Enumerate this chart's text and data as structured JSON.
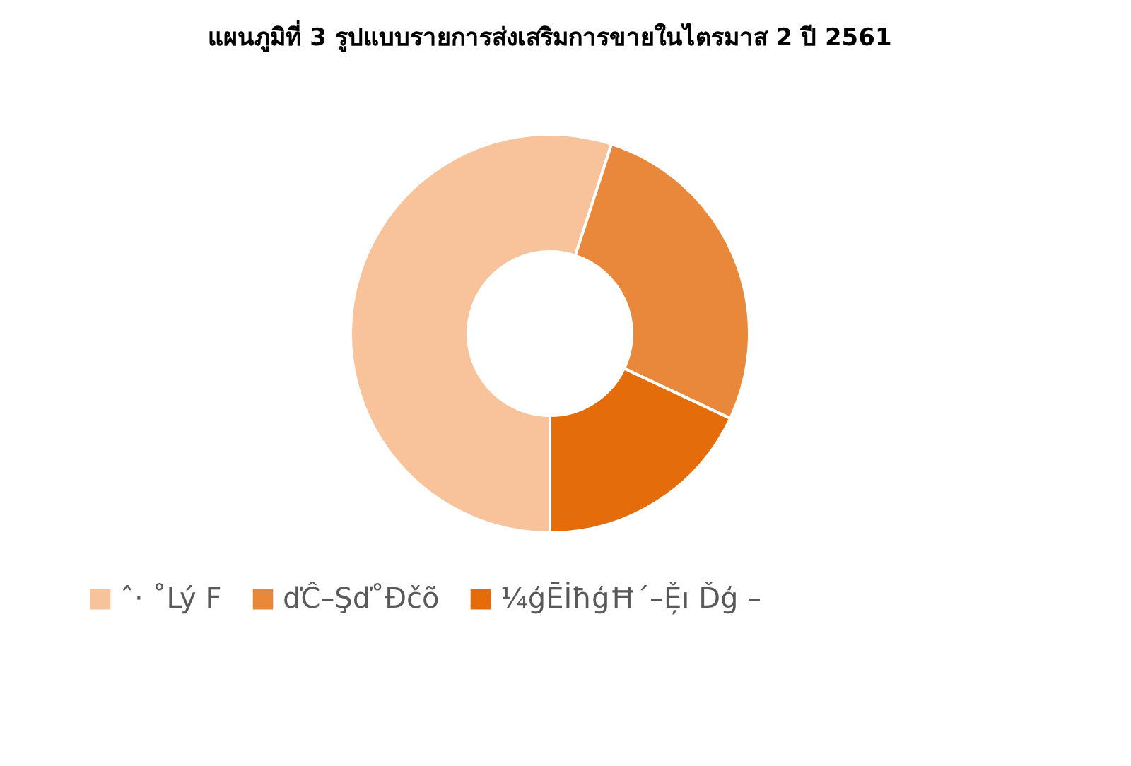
{
  "chart_data": {
    "type": "donut",
    "title": "แผนภูมิที่ 3 รูปแบบรายการส่งเสริมการขายในไตรมาส 2 ปี 2561",
    "categories": [
      "ˆ· ˚Lý F",
      "ďĈ–Şď˚Đčõ",
      "¼ģĒİħģĦ´–Ě̦ı Ďģ –"
    ],
    "values": [
      55,
      27,
      18
    ],
    "colors": [
      "#f8c29a",
      "#e9883a",
      "#e46c0a"
    ],
    "legend": "bottom"
  }
}
